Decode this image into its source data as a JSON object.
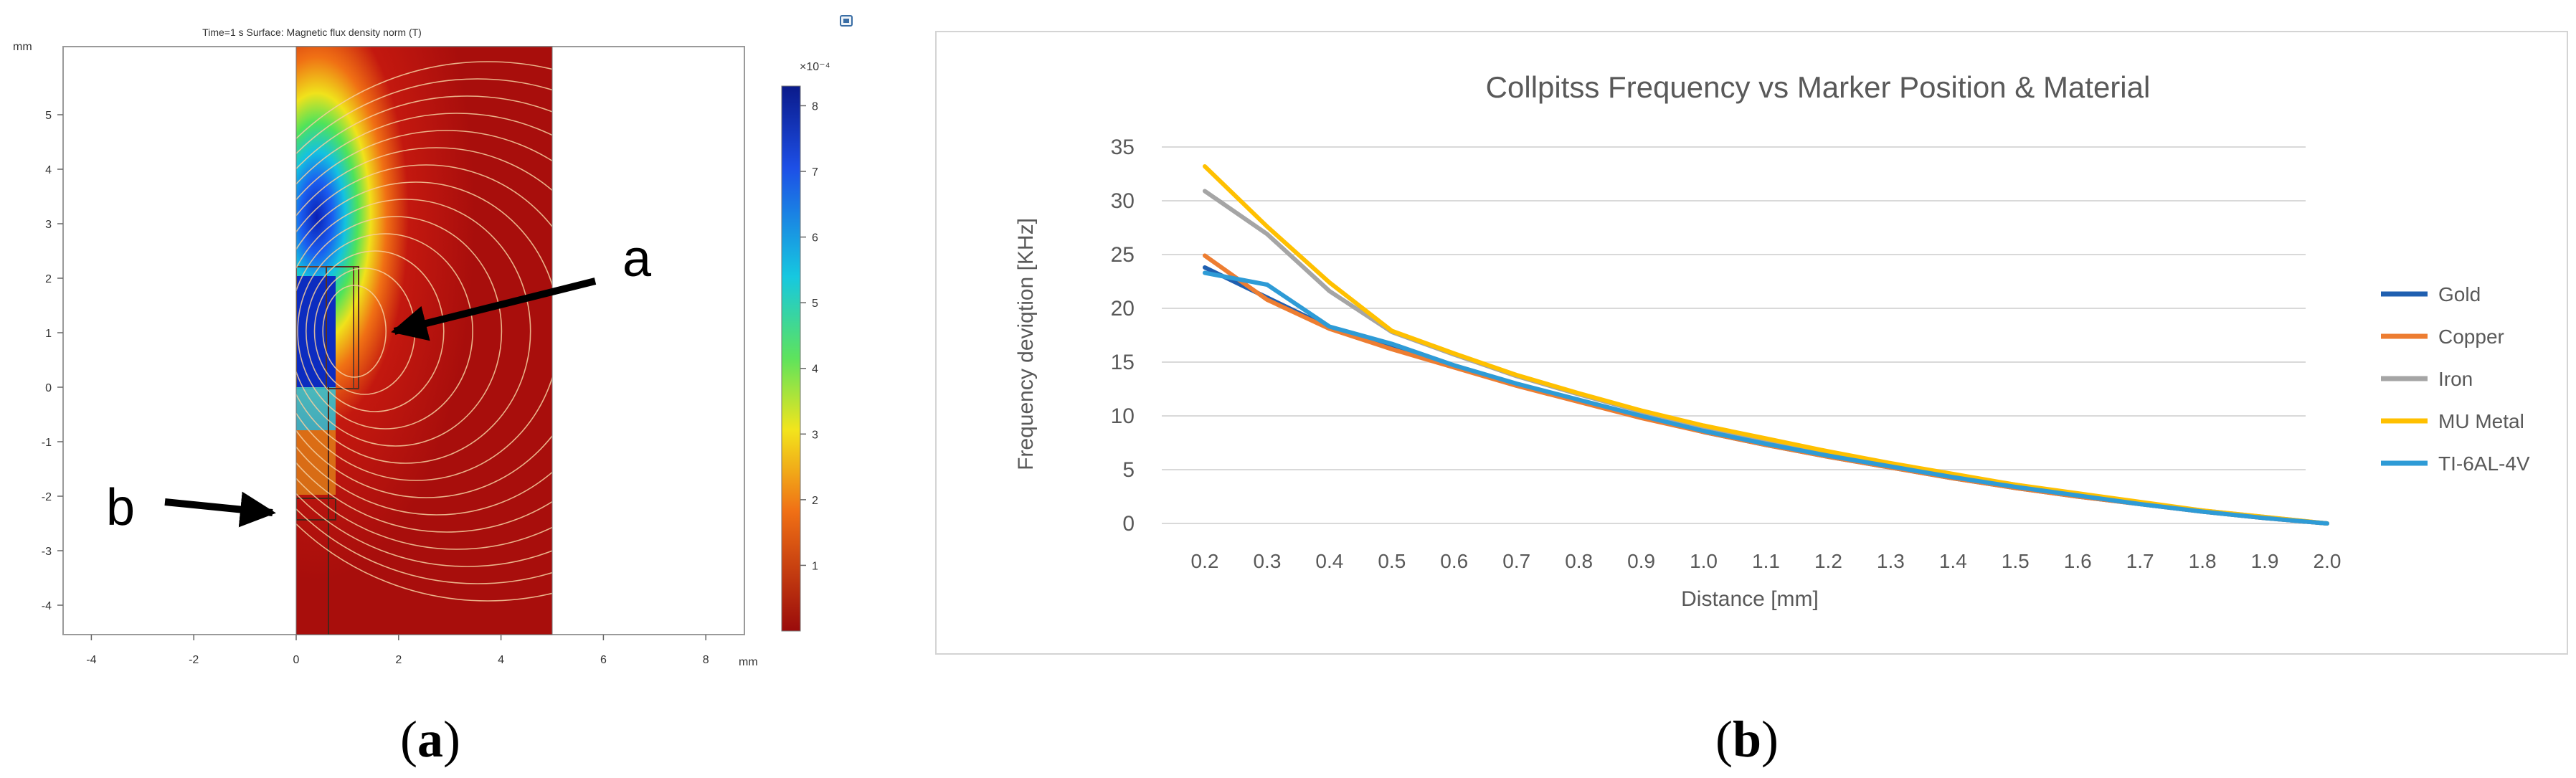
{
  "panel_a": {
    "caption_open": "(",
    "caption_letter": "a",
    "caption_close": ")",
    "header": "Time=1 s   Surface: Magnetic flux density norm (T)",
    "unit_label": "mm",
    "x_unit_label": "mm",
    "x_ticks": [
      "-4",
      "-2",
      "0",
      "2",
      "4",
      "6",
      "8"
    ],
    "y_ticks": [
      "5",
      "4",
      "3",
      "2",
      "1",
      "0",
      "-1",
      "-2",
      "-3",
      "-4"
    ],
    "colorbar_exponent": "×10⁻⁴",
    "colorbar_ticks": [
      "8",
      "7",
      "6",
      "5",
      "4",
      "3",
      "2",
      "1"
    ],
    "annotation_a": "a",
    "annotation_b": "b",
    "colors": {
      "field_red": "#b3120f",
      "field_blue": "#0c2fc4",
      "contour": "#f5c89a"
    }
  },
  "panel_b": {
    "caption_open": "(",
    "caption_letter": "b",
    "caption_close": ")"
  },
  "chart_data": {
    "type": "line",
    "title": "Collpitss Frequency vs Marker Position & Material",
    "xlabel": "Distance [mm]",
    "ylabel": "Frequency deviqtion [KHz]",
    "ylim": [
      0,
      35
    ],
    "yticks": [
      "0",
      "5",
      "10",
      "15",
      "20",
      "25",
      "30",
      "35"
    ],
    "categories": [
      "0.2",
      "0.3",
      "0.4",
      "0.5",
      "0.6",
      "0.7",
      "0.8",
      "0.9",
      "1.0",
      "1.1",
      "1.2",
      "1.3",
      "1.4",
      "1.5",
      "1.6",
      "1.7",
      "1.8",
      "1.9",
      "2.0"
    ],
    "grid": true,
    "legend_position": "right",
    "series": [
      {
        "name": "Gold",
        "color": "#1f5fb0",
        "values": [
          23.8,
          21.0,
          18.2,
          16.3,
          14.6,
          12.9,
          11.4,
          9.9,
          8.5,
          7.3,
          6.2,
          5.2,
          4.2,
          3.3,
          2.5,
          1.8,
          1.1,
          0.5,
          0
        ]
      },
      {
        "name": "Copper",
        "color": "#ed7d31",
        "values": [
          24.9,
          20.8,
          18.1,
          16.2,
          14.5,
          12.8,
          11.3,
          9.8,
          8.5,
          7.3,
          6.2,
          5.2,
          4.2,
          3.3,
          2.5,
          1.8,
          1.1,
          0.5,
          0
        ]
      },
      {
        "name": "Iron",
        "color": "#a5a5a5",
        "values": [
          30.9,
          26.9,
          21.6,
          17.8,
          15.7,
          13.7,
          12.0,
          10.4,
          9.0,
          7.8,
          6.6,
          5.5,
          4.5,
          3.6,
          2.7,
          1.9,
          1.2,
          0.6,
          0
        ]
      },
      {
        "name": "MU Metal",
        "color": "#ffc000",
        "values": [
          33.2,
          27.6,
          22.4,
          17.9,
          15.8,
          13.8,
          12.1,
          10.5,
          9.1,
          7.9,
          6.7,
          5.6,
          4.6,
          3.6,
          2.8,
          2.0,
          1.2,
          0.6,
          0
        ]
      },
      {
        "name": "TI-6AL-4V",
        "color": "#2e9bd6",
        "values": [
          23.3,
          22.2,
          18.3,
          16.7,
          14.7,
          13.0,
          11.5,
          10.0,
          8.6,
          7.4,
          6.3,
          5.3,
          4.3,
          3.4,
          2.6,
          1.8,
          1.1,
          0.5,
          0
        ]
      }
    ]
  }
}
